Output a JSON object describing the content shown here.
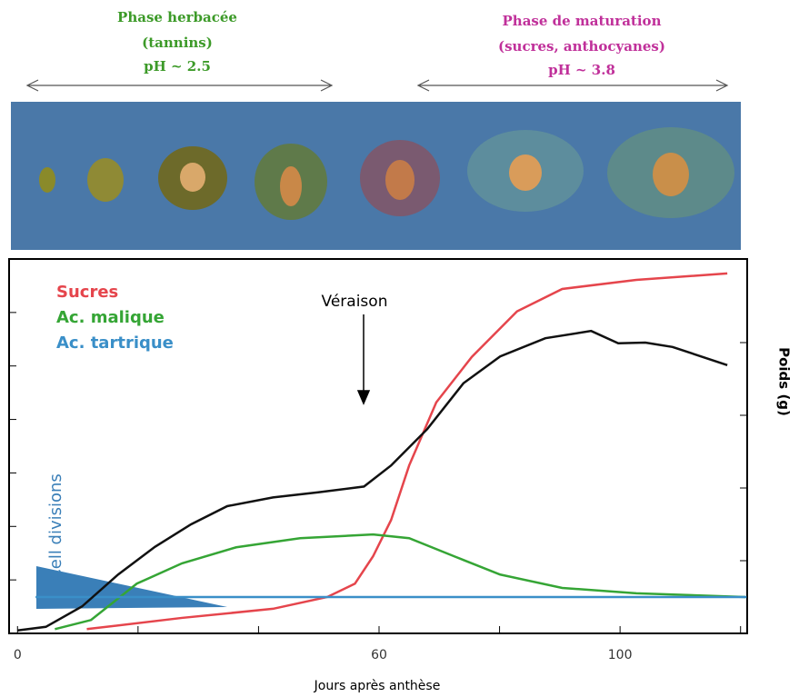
{
  "chart_data": {
    "type": "line",
    "phases": [
      {
        "title": "Phase herbacée",
        "detail": "(tannins)",
        "ph": "pH ~ 2.5",
        "color": "#3c9a28"
      },
      {
        "title": "Phase de maturation",
        "detail": "(sucres, anthocyanes)",
        "ph": "pH ~ 3.8",
        "color": "#c0309a"
      }
    ],
    "annotations": [
      "Véraison",
      "Cell divisions"
    ],
    "xlabel": "Jours après anthèse",
    "y2label": "Poids (g)",
    "xlim": [
      -1.4,
      121.1
    ],
    "xticks": [
      0,
      60,
      100
    ],
    "xminor_ticks": [
      20,
      40,
      80,
      120
    ],
    "ylim": [
      0,
      7
    ],
    "yticks": [
      1,
      2,
      3,
      4,
      5,
      6
    ],
    "y2lim": [
      0,
      5.15
    ],
    "y2ticks": [
      1,
      2,
      3,
      4
    ],
    "series": [
      {
        "name": "Sucres",
        "color": "#e5454c",
        "x": [
          11.5,
          27.3,
          42.4,
          51.4,
          56,
          59,
          62,
          65,
          69.5,
          75.4,
          82.9,
          90.4,
          102.7,
          117.8
        ],
        "values": [
          0.08,
          0.29,
          0.46,
          0.68,
          0.93,
          1.44,
          2.12,
          3.14,
          4.32,
          5.17,
          6.02,
          6.44,
          6.61,
          6.73
        ]
      },
      {
        "name": "Ac. malique",
        "color": "#35a535",
        "x": [
          6.2,
          12.2,
          19.8,
          27.3,
          36.3,
          46.9,
          59,
          65,
          72.5,
          80.1,
          90.4,
          102.7,
          120.8
        ],
        "values": [
          0.08,
          0.25,
          0.93,
          1.31,
          1.61,
          1.78,
          1.85,
          1.78,
          1.44,
          1.1,
          0.85,
          0.75,
          0.68
        ]
      },
      {
        "name": "Ac. tartrique",
        "color": "#3a8fc8",
        "x": [
          3,
          121
        ],
        "values": [
          0.68,
          0.68
        ]
      },
      {
        "color": "#111111",
        "axis": "y2",
        "x": [
          0,
          4.7,
          10.7,
          16.7,
          22.8,
          28.8,
          34.8,
          42.4,
          49.9,
          57.5,
          62,
          68,
          74,
          80.1,
          87.6,
          95.2,
          99.7,
          104.2,
          108.7,
          117.8
        ],
        "values": [
          0.04,
          0.09,
          0.37,
          0.81,
          1.19,
          1.5,
          1.75,
          1.87,
          1.94,
          2.02,
          2.31,
          2.81,
          3.44,
          3.81,
          4.06,
          4.16,
          3.99,
          4.0,
          3.94,
          3.69
        ]
      }
    ]
  }
}
